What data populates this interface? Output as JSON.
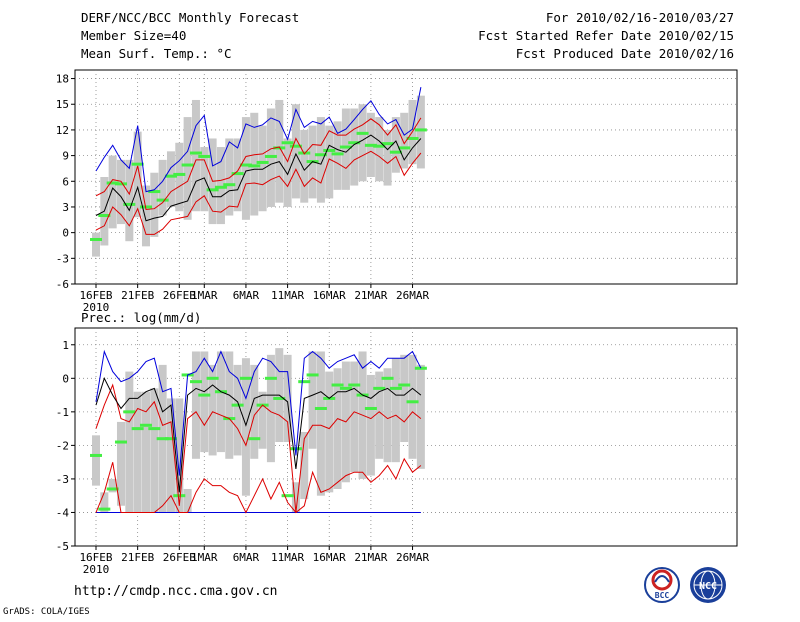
{
  "header": {
    "title": "DERF/NCC/BCC Monthly Forecast",
    "member_size": "Member Size=40",
    "period": "For 2010/02/16-2010/03/27",
    "refer_date": "Fcst Started Refer Date 2010/02/15",
    "produced_date": "Fcst Produced Date 2010/02/16"
  },
  "footer": {
    "url": "http://cmdp.ncc.cma.gov.cn",
    "grads_credit": "GrADS: COLA/IGES",
    "logo_bcc_text": "BCC",
    "logo_ncc_text": "NCC"
  },
  "colors": {
    "box": "#c8c8c8",
    "median": "#44ee44",
    "mean": "#000000",
    "envelope_red": "#dd0000",
    "envelope_blue": "#0000dd"
  },
  "chart_data": [
    {
      "type": "box-timeseries",
      "ylabel": "Mean Surf. Temp.: °C",
      "ylim": [
        -6,
        19
      ],
      "yticks": [
        -6,
        -3,
        0,
        3,
        6,
        9,
        12,
        15,
        18
      ],
      "x_tick_labels": [
        "16FEB",
        "21FEB",
        "26FEB",
        "1MAR",
        "6MAR",
        "11MAR",
        "16MAR",
        "21MAR",
        "26MAR"
      ],
      "x_tick_days": [
        1,
        6,
        11,
        14,
        19,
        24,
        29,
        34,
        39
      ],
      "year_label": "2010",
      "days": 40,
      "series": {
        "box_low": [
          -2.8,
          -1.5,
          0.5,
          1,
          -1,
          1.8,
          -1.6,
          -0.5,
          2,
          3,
          2.5,
          1.5,
          2.5,
          2.5,
          1,
          1,
          2,
          2.5,
          1.5,
          2,
          2.5,
          3,
          3.5,
          3,
          4,
          3.5,
          4,
          3.5,
          4,
          5,
          5,
          5.5,
          6,
          6.5,
          6,
          5.5,
          7,
          7.5,
          8,
          7.5
        ],
        "box_high": [
          0,
          6.5,
          9,
          8.5,
          8.5,
          11.8,
          5.5,
          7,
          8.5,
          9.5,
          10.5,
          13.5,
          15.5,
          10,
          11,
          10,
          11,
          11,
          13.5,
          14,
          12.5,
          14.5,
          15.5,
          11,
          15,
          12,
          12.5,
          13.5,
          12.5,
          13,
          14.5,
          14.5,
          15,
          14,
          13.5,
          12,
          13.5,
          14,
          15.5,
          16
        ],
        "median": [
          -0.8,
          2,
          5.8,
          5.7,
          3.3,
          8,
          3,
          4.8,
          3.8,
          6.6,
          6.8,
          7.9,
          9.3,
          8.9,
          5,
          5.3,
          5.6,
          6.9,
          7.9,
          7.8,
          8.2,
          8.9,
          9.9,
          10.5,
          10.1,
          9.3,
          8.3,
          9.1,
          9.6,
          9.2,
          10,
          10.5,
          11.6,
          10.2,
          10.1,
          10.4,
          9.4,
          9.9,
          11,
          12
        ],
        "mean": [
          2,
          2.5,
          5.2,
          4.2,
          2.6,
          5.3,
          1.4,
          1.7,
          1.9,
          3.1,
          3.4,
          3.7,
          6,
          6.4,
          4.2,
          4.2,
          4.9,
          5,
          7.2,
          7.4,
          7.4,
          8,
          8.3,
          6.8,
          9.2,
          7.3,
          8.3,
          8,
          10.2,
          9.7,
          9.4,
          10.3,
          10.8,
          11.4,
          10.7,
          9.7,
          10.7,
          8.5,
          9.9,
          11
        ],
        "red_upper": [
          4.3,
          4.8,
          6.2,
          6,
          4.5,
          7.8,
          2.7,
          2.8,
          3.5,
          4.8,
          5.4,
          6,
          8.5,
          8.5,
          6,
          6.1,
          6.4,
          7.2,
          8.9,
          9.1,
          9.2,
          9.8,
          10,
          8.3,
          11,
          9.2,
          10.3,
          10.2,
          11.9,
          11.4,
          11.4,
          12.1,
          12.6,
          13.3,
          12.6,
          11.4,
          12.6,
          10.4,
          11.8,
          13.4
        ],
        "red_lower": [
          0.3,
          0.8,
          3,
          2.1,
          0.8,
          2.8,
          -0.2,
          -0.2,
          0.4,
          1.5,
          1.7,
          1.9,
          3.6,
          4.3,
          2.5,
          2.4,
          3.1,
          3,
          5.7,
          5.8,
          5.6,
          6.2,
          6.6,
          5.4,
          7.4,
          5.4,
          6.4,
          5.8,
          8.6,
          8.1,
          7.5,
          8.5,
          9,
          9.5,
          8.9,
          8.1,
          8.9,
          6.7,
          8.1,
          9.3
        ],
        "blue_upper": [
          7.2,
          8.8,
          10.2,
          8.5,
          7.5,
          12.5,
          4.8,
          5,
          6,
          7.6,
          8.4,
          9.5,
          12.5,
          13.7,
          7.8,
          8.3,
          10.6,
          9.9,
          12.7,
          12.3,
          12.6,
          13.4,
          13,
          10.9,
          14.4,
          12.3,
          13,
          12.7,
          13.5,
          11.6,
          12.1,
          13.2,
          14.4,
          15.4,
          13.8,
          12.7,
          13.2,
          11.4,
          12.1,
          17
        ]
      }
    },
    {
      "type": "box-timeseries",
      "ylabel": "Prec.: log(mm/d)",
      "ylim": [
        -5,
        1.5
      ],
      "yticks": [
        -5,
        -4,
        -3,
        -2,
        -1,
        0,
        1
      ],
      "x_tick_labels": [
        "16FEB",
        "21FEB",
        "26FEB",
        "1MAR",
        "6MAR",
        "11MAR",
        "16MAR",
        "21MAR",
        "26MAR"
      ],
      "x_tick_days": [
        1,
        6,
        11,
        14,
        19,
        24,
        29,
        34,
        39
      ],
      "year_label": "2010",
      "days": 40,
      "series": {
        "box_low": [
          -3.2,
          -4,
          -3.4,
          -3.8,
          -4,
          -4,
          -4,
          -4,
          -4,
          -4,
          -4,
          -4,
          -2.4,
          -2.2,
          -2.3,
          -2.2,
          -2.4,
          -2.3,
          -3.5,
          -2.4,
          -2.1,
          -2.5,
          -1.9,
          -1.9,
          -4,
          -3.6,
          -2.1,
          -3.5,
          -3.4,
          -3.3,
          -3.1,
          -2.8,
          -3,
          -2.9,
          -2.4,
          -2.5,
          -2.5,
          -1.9,
          -2.4,
          -2.7
        ],
        "box_high": [
          -1.7,
          -3.4,
          -3,
          -1.3,
          0.2,
          -0.4,
          -0.4,
          -0.3,
          0.4,
          -0.6,
          -0.6,
          -3.3,
          0.8,
          0.8,
          0.4,
          0.8,
          0.8,
          0.4,
          0.6,
          0.4,
          -0.4,
          0.7,
          0.9,
          0.7,
          -3.1,
          -1.6,
          0.8,
          0.8,
          0.2,
          0.3,
          0.5,
          0.5,
          0.8,
          0.1,
          0.2,
          0.3,
          0.6,
          0.7,
          0.7,
          0.4
        ],
        "median": [
          -2.3,
          -3.9,
          -3.3,
          -1.9,
          -1,
          -1.5,
          -1.4,
          -1.5,
          -1.8,
          -1.8,
          -3.5,
          0.1,
          -0.1,
          -0.5,
          0,
          -0.4,
          -1.2,
          -0.8,
          0,
          -1.8,
          -0.8,
          0,
          -0.6,
          -3.5,
          -2.1,
          -0.1,
          0.1,
          -0.9,
          -0.6,
          -0.2,
          -0.3,
          -0.2,
          -0.5,
          -0.9,
          -0.3,
          0,
          -0.3,
          -0.2,
          -0.7,
          0.3
        ],
        "mean": [
          -0.8,
          0,
          -0.5,
          -0.9,
          -0.6,
          -0.6,
          -0.4,
          -0.3,
          -1,
          -0.8,
          -3.4,
          -0.5,
          -0.3,
          -0.4,
          -0.2,
          -0.4,
          -0.5,
          -0.7,
          -1.4,
          -0.6,
          -0.5,
          -0.5,
          -0.5,
          -0.7,
          -2.7,
          -0.6,
          -0.5,
          -0.4,
          -0.6,
          -0.4,
          -0.4,
          -0.3,
          -0.5,
          -0.6,
          -0.4,
          -0.3,
          -0.5,
          -0.5,
          -0.3,
          -0.5
        ],
        "red_upper": [
          -1.5,
          -0.8,
          -0.2,
          -1.2,
          -1.3,
          -0.9,
          -1.0,
          -0.7,
          -1.4,
          -1.3,
          -3.8,
          -1.2,
          -1.0,
          -1.4,
          -1.0,
          -1.1,
          -1.2,
          -1.5,
          -2.0,
          -1.1,
          -0.8,
          -1.0,
          -1.1,
          -1.3,
          -4.0,
          -1.8,
          -1.4,
          -1.4,
          -1.5,
          -1.2,
          -1.3,
          -1.0,
          -1.1,
          -1.2,
          -1.0,
          -1.2,
          -1.1,
          -1.3,
          -1.0,
          -1.2
        ],
        "red_lower": [
          -4,
          -3.4,
          -2.5,
          -4,
          -4,
          -4,
          -4,
          -4,
          -3.8,
          -3.5,
          -4,
          -4,
          -3.4,
          -3.0,
          -3.2,
          -3.2,
          -3.4,
          -3.5,
          -4,
          -3.5,
          -3.0,
          -3.6,
          -3.1,
          -3.7,
          -4,
          -3.8,
          -2.8,
          -3.4,
          -3.3,
          -3.1,
          -2.9,
          -2.8,
          -2.8,
          -3.1,
          -2.9,
          -2.6,
          -3.0,
          -2.4,
          -2.8,
          -2.6
        ],
        "blue_upper": [
          -0.7,
          0.8,
          0.2,
          -0.1,
          0.0,
          0.2,
          0.5,
          0.6,
          -0.4,
          -0.3,
          -2.9,
          0.1,
          0.2,
          0.6,
          0.2,
          0.8,
          0.2,
          0.0,
          -0.6,
          0.2,
          0.6,
          0.5,
          0.2,
          0.2,
          -2.3,
          0.6,
          0.8,
          0.6,
          0.3,
          0.5,
          0.6,
          0.7,
          0.3,
          0.5,
          0.3,
          0.6,
          0.6,
          0.6,
          0.8,
          0.3
        ],
        "blue_lower": [
          -4,
          -4,
          -4,
          -4,
          -4,
          -4,
          -4,
          -4,
          -4,
          -4,
          -4,
          -4,
          -4,
          -4,
          -4,
          -4,
          -4,
          -4,
          -4,
          -4,
          -4,
          -4,
          -4,
          -4,
          -4,
          -4,
          -4,
          -4,
          -4,
          -4,
          -4,
          -4,
          -4,
          -4,
          -4,
          -4,
          -4,
          -4,
          -4,
          -4
        ]
      }
    }
  ]
}
